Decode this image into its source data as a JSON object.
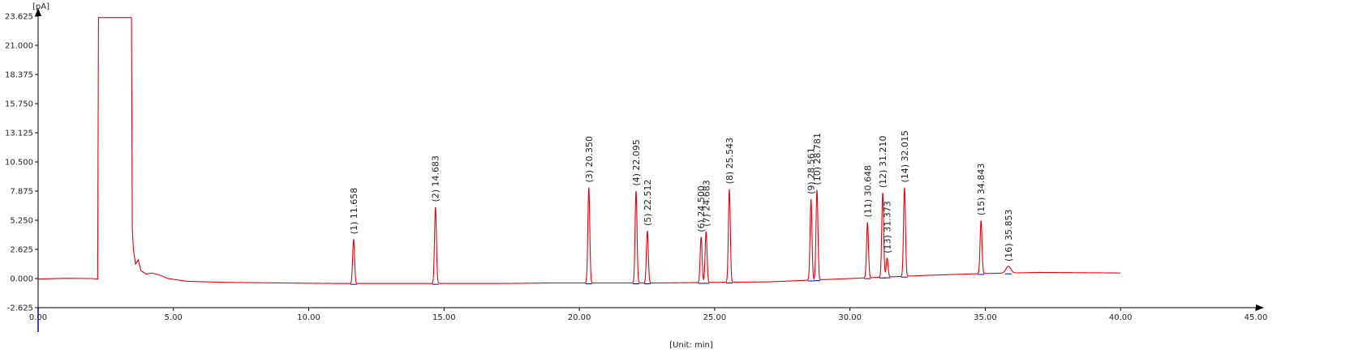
{
  "chart_data": {
    "type": "line",
    "y_unit": "[pA]",
    "x_unit": "[Unit: min]",
    "xlim": [
      0,
      45
    ],
    "ylim": [
      -2.625,
      23.625
    ],
    "x_ticks": [
      "0.00",
      "5.00",
      "10.00",
      "15.00",
      "20.00",
      "25.00",
      "30.00",
      "35.00",
      "40.00",
      "45.00"
    ],
    "y_ticks": [
      "23.625",
      "21.000",
      "18.375",
      "15.750",
      "13.125",
      "10.500",
      "7.875",
      "5.250",
      "2.625",
      "0.000",
      "-2.625"
    ],
    "colors": {
      "trace": "#e8000b",
      "axis": "#000000",
      "baseline_marker": "#0000cc"
    },
    "series": [
      {
        "x": [
          0.0,
          1.0,
          2.0,
          2.2,
          2.23,
          3.45,
          3.48,
          3.52,
          3.6,
          3.7,
          3.8,
          4.0,
          4.2,
          4.5,
          4.8,
          5.5,
          7.0,
          9.0,
          11.0,
          13.0,
          15.0,
          17.0,
          19.0,
          21.0,
          23.0,
          25.0,
          27.0,
          29.0,
          31.0,
          33.0,
          35.0,
          37.0,
          40.0
        ],
        "y": [
          -0.05,
          0.02,
          0.0,
          -0.05,
          23.5,
          23.5,
          4.5,
          2.6,
          1.3,
          1.7,
          0.7,
          0.4,
          0.5,
          0.3,
          0.0,
          -0.25,
          -0.35,
          -0.4,
          -0.45,
          -0.45,
          -0.45,
          -0.45,
          -0.4,
          -0.4,
          -0.4,
          -0.35,
          -0.3,
          -0.1,
          0.1,
          0.3,
          0.45,
          0.55,
          0.5
        ]
      }
    ],
    "peaks": [
      {
        "label": "(1) 11.658",
        "rt": 11.658,
        "height": 4.0
      },
      {
        "label": "(2) 14.683",
        "rt": 14.683,
        "height": 6.9
      },
      {
        "label": "(3) 20.350",
        "rt": 20.35,
        "height": 8.6
      },
      {
        "label": "(4) 22.095",
        "rt": 22.095,
        "height": 8.3
      },
      {
        "label": "(5) 22.512",
        "rt": 22.512,
        "height": 4.7
      },
      {
        "label": "(6) 24.500",
        "rt": 24.5,
        "height": 4.1
      },
      {
        "label": "(7) 24.683",
        "rt": 24.683,
        "height": 4.6
      },
      {
        "label": "(8) 25.543",
        "rt": 25.543,
        "height": 8.4
      },
      {
        "label": "(9) 28.561",
        "rt": 28.561,
        "height": 7.3
      },
      {
        "label": "(10) 28.781",
        "rt": 28.781,
        "height": 8.1
      },
      {
        "label": "(11) 30.648",
        "rt": 30.648,
        "height": 5.0
      },
      {
        "label": "(12) 31.210",
        "rt": 31.21,
        "height": 7.6
      },
      {
        "label": "(13) 31.373",
        "rt": 31.373,
        "height": 1.7
      },
      {
        "label": "(14) 32.015",
        "rt": 32.015,
        "height": 8.0
      },
      {
        "label": "(15) 34.843",
        "rt": 34.843,
        "height": 4.8
      },
      {
        "label": "(16) 35.853",
        "rt": 35.853,
        "height": 0.6
      }
    ],
    "grid": false,
    "legend": "none"
  }
}
